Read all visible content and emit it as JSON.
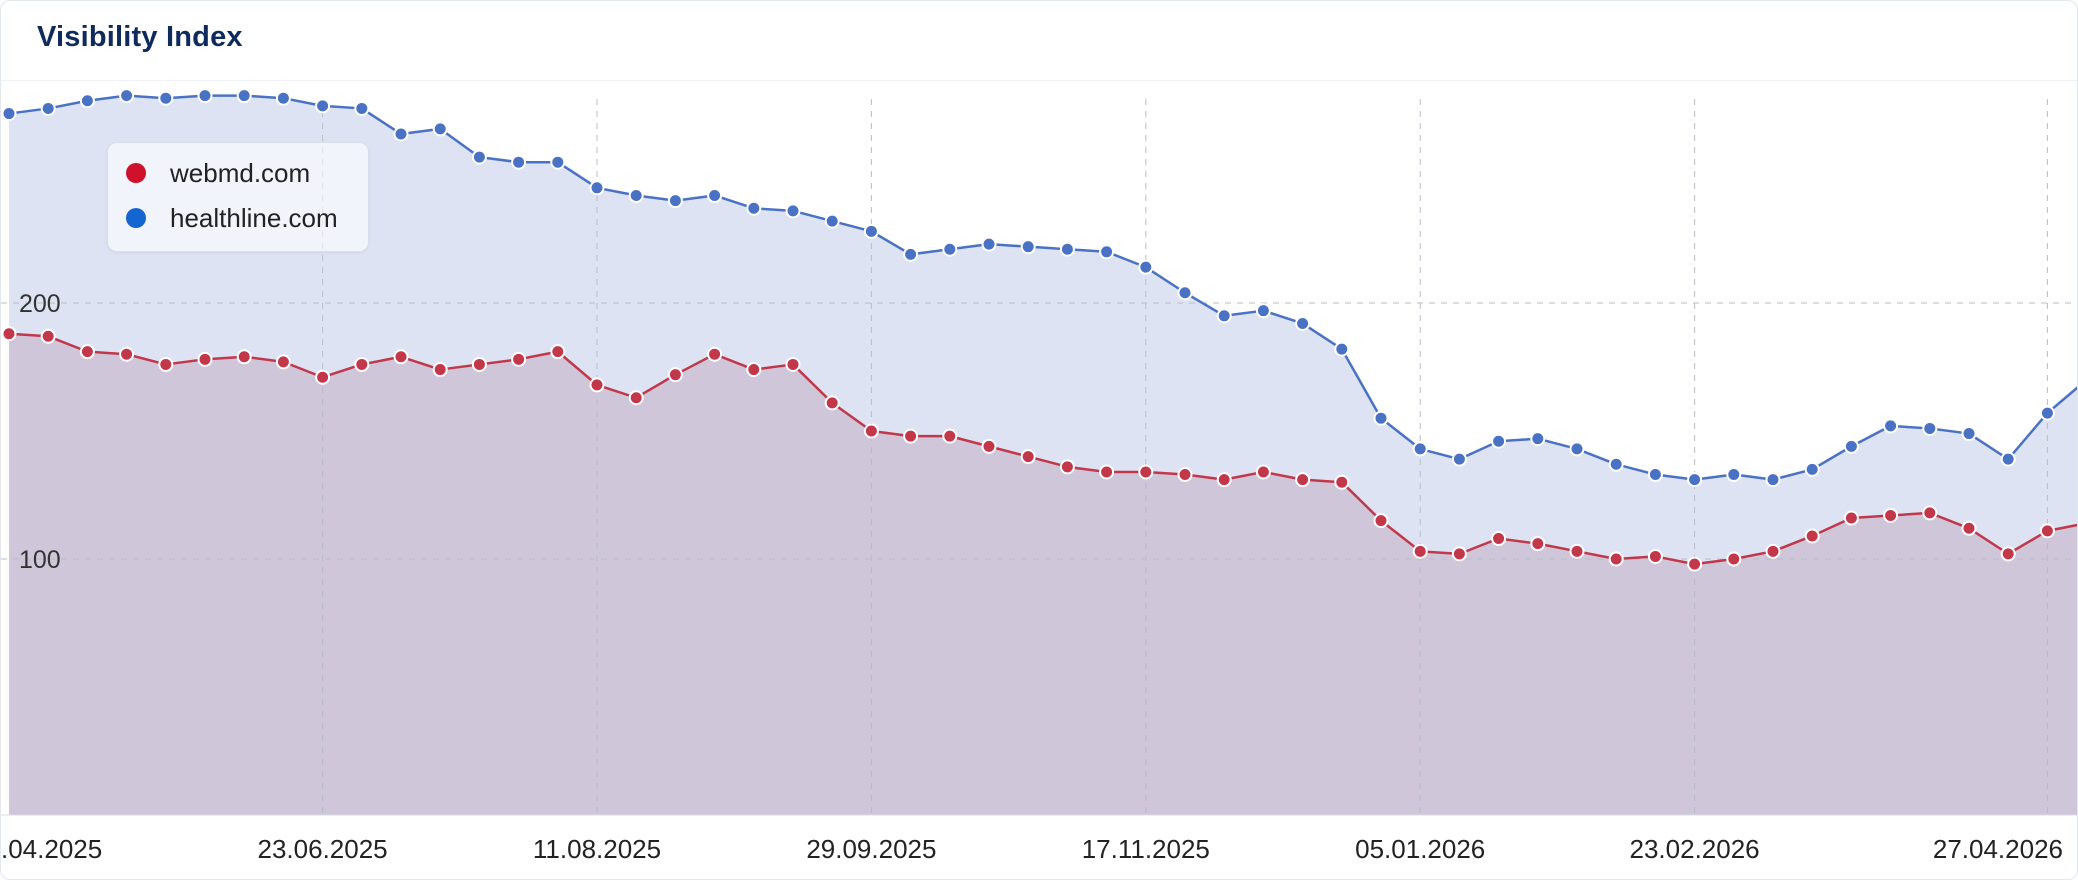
{
  "header": {
    "title": "Visibility Index"
  },
  "chart_data": {
    "type": "area",
    "title": "Visibility Index",
    "xlabel": "",
    "ylabel": "",
    "ylim": [
      0,
      280
    ],
    "yticks": [
      100,
      200
    ],
    "xtick_labels": [
      ".04.2025",
      "23.06.2025",
      "11.08.2025",
      "29.09.2025",
      "17.11.2025",
      "05.01.2026",
      "23.02.2026",
      "27.04.2026"
    ],
    "x": [
      "28.04.2025",
      "05.05.2025",
      "12.05.2025",
      "19.05.2025",
      "26.05.2025",
      "02.06.2025",
      "09.06.2025",
      "16.06.2025",
      "23.06.2025",
      "30.06.2025",
      "07.07.2025",
      "14.07.2025",
      "21.07.2025",
      "28.07.2025",
      "04.08.2025",
      "11.08.2025",
      "18.08.2025",
      "25.08.2025",
      "01.09.2025",
      "08.09.2025",
      "15.09.2025",
      "22.09.2025",
      "29.09.2025",
      "06.10.2025",
      "13.10.2025",
      "20.10.2025",
      "27.10.2025",
      "03.11.2025",
      "10.11.2025",
      "17.11.2025",
      "24.11.2025",
      "01.12.2025",
      "08.12.2025",
      "15.12.2025",
      "22.12.2025",
      "29.12.2025",
      "05.01.2026",
      "12.01.2026",
      "19.01.2026",
      "26.01.2026",
      "02.02.2026",
      "09.02.2026",
      "16.02.2026",
      "23.02.2026",
      "02.03.2026",
      "09.03.2026",
      "16.03.2026",
      "23.03.2026",
      "30.03.2026",
      "06.04.2026",
      "13.04.2026",
      "20.04.2026",
      "27.04.2026",
      "04.05.2026"
    ],
    "series": [
      {
        "name": "healthline.com",
        "color": "#4a72c4",
        "fill": "#dde3f2",
        "values": [
          274,
          276,
          279,
          281,
          280,
          281,
          281,
          280,
          277,
          276,
          266,
          268,
          257,
          255,
          255,
          245,
          242,
          240,
          242,
          237,
          236,
          232,
          228,
          219,
          221,
          223,
          222,
          221,
          220,
          214,
          204,
          195,
          197,
          192,
          182,
          155,
          143,
          139,
          146,
          147,
          143,
          137,
          133,
          131,
          133,
          131,
          135,
          144,
          152,
          151,
          149,
          139,
          157,
          170
        ]
      },
      {
        "name": "webmd.com",
        "color": "#c2384a",
        "fill": "#cfc6da",
        "values": [
          188,
          187,
          181,
          180,
          176,
          178,
          179,
          177,
          171,
          176,
          179,
          174,
          176,
          178,
          181,
          168,
          163,
          172,
          180,
          174,
          176,
          161,
          150,
          148,
          148,
          144,
          140,
          136,
          134,
          134,
          133,
          131,
          134,
          131,
          130,
          115,
          103,
          102,
          108,
          106,
          103,
          100,
          101,
          98,
          100,
          103,
          109,
          116,
          117,
          118,
          112,
          102,
          111,
          114
        ]
      }
    ]
  },
  "legend": {
    "items": [
      {
        "label": "webmd.com",
        "color": "#d0112b"
      },
      {
        "label": "healthline.com",
        "color": "#1565d1"
      }
    ]
  }
}
